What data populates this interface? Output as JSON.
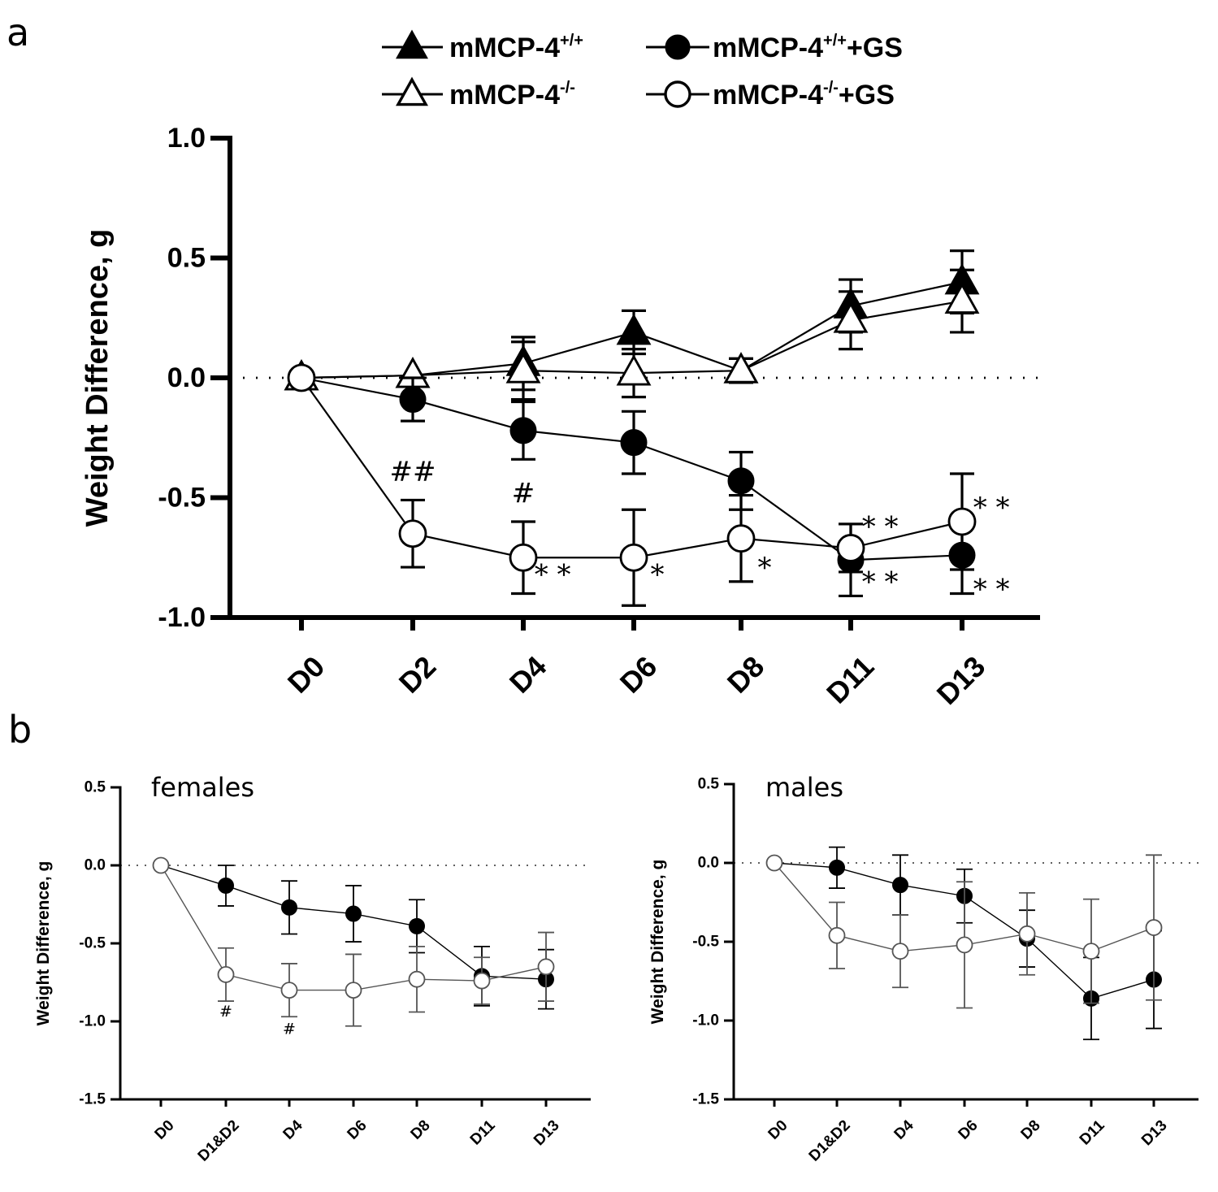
{
  "panel_a": {
    "label": "a",
    "legend": [
      {
        "key": "wt",
        "base": "mMCP-4",
        "sup": "+/+",
        "suffix": ""
      },
      {
        "key": "ko",
        "base": "mMCP-4",
        "sup": "-/-",
        "suffix": ""
      },
      {
        "key": "wt_gs",
        "base": "mMCP-4",
        "sup": "+/+",
        "suffix": "+GS"
      },
      {
        "key": "ko_gs",
        "base": "mMCP-4",
        "sup": "-/-",
        "suffix": "+GS"
      }
    ]
  },
  "panel_b": {
    "label": "b"
  },
  "chart_data": [
    {
      "id": "a",
      "type": "line",
      "title": "",
      "xlabel": "",
      "ylabel": "Weight Difference, g",
      "ylim": [
        -1.0,
        1.0
      ],
      "yticks": [
        1.0,
        0.5,
        0.0,
        -0.5,
        -1.0
      ],
      "ytick_labels": [
        "1.0",
        "0.5",
        "0.0",
        "-0.5",
        "-1.0"
      ],
      "categories": [
        "D0",
        "D2",
        "D4",
        "D6",
        "D8",
        "D11",
        "D13"
      ],
      "reference_line": 0,
      "legend_position": "top",
      "series": [
        {
          "key": "wt",
          "name": "mMCP-4+/+",
          "marker": "triangle-filled",
          "values": [
            0.0,
            0.01,
            0.06,
            0.19,
            0.03,
            0.3,
            0.4
          ],
          "err": [
            0.0,
            0.0,
            0.11,
            0.09,
            0.05,
            0.11,
            0.13
          ]
        },
        {
          "key": "ko",
          "name": "mMCP-4-/-",
          "marker": "triangle-open",
          "values": [
            0.0,
            0.01,
            0.03,
            0.02,
            0.03,
            0.24,
            0.32
          ],
          "err": [
            0.0,
            0.0,
            0.12,
            0.1,
            0.05,
            0.12,
            0.13
          ]
        },
        {
          "key": "wt_gs",
          "name": "mMCP-4+/++GS",
          "marker": "circle-filled",
          "values": [
            0.0,
            -0.09,
            -0.22,
            -0.27,
            -0.43,
            -0.76,
            -0.74
          ],
          "err": [
            0.0,
            0.09,
            0.12,
            0.13,
            0.12,
            0.15,
            0.16
          ]
        },
        {
          "key": "ko_gs",
          "name": "mMCP-4-/-+GS",
          "marker": "circle-open",
          "values": [
            0.0,
            -0.65,
            -0.75,
            -0.75,
            -0.67,
            -0.71,
            -0.6
          ],
          "err": [
            0.0,
            0.14,
            0.15,
            0.2,
            0.18,
            0.1,
            0.2
          ]
        }
      ],
      "annotations": [
        {
          "text": "##",
          "x": 1,
          "y": -0.43,
          "anchor": "middle"
        },
        {
          "text": "#",
          "x": 2,
          "y": -0.52,
          "anchor": "middle"
        },
        {
          "text": "* *",
          "x": 2.1,
          "y": -0.86,
          "anchor": "start"
        },
        {
          "text": "*",
          "x": 3.15,
          "y": -0.86,
          "anchor": "start"
        },
        {
          "text": "*",
          "x": 4.15,
          "y": -0.83,
          "anchor": "start"
        },
        {
          "text": "* *",
          "x": 5.1,
          "y": -0.66,
          "anchor": "start"
        },
        {
          "text": "* *",
          "x": 5.1,
          "y": -0.89,
          "anchor": "start"
        },
        {
          "text": "* *",
          "x": 6.1,
          "y": -0.58,
          "anchor": "start"
        },
        {
          "text": "* *",
          "x": 6.1,
          "y": -0.92,
          "anchor": "start"
        }
      ]
    },
    {
      "id": "b-females",
      "type": "line",
      "title": "females",
      "xlabel": "",
      "ylabel": "Weight Difference, g",
      "ylim": [
        -1.5,
        0.5
      ],
      "yticks": [
        0.5,
        0.0,
        -0.5,
        -1.0,
        -1.5
      ],
      "ytick_labels": [
        "0.5",
        "0.0",
        "-0.5",
        "-1.0",
        "-1.5"
      ],
      "categories": [
        "D0",
        "D1&D2",
        "D4",
        "D6",
        "D8",
        "D11",
        "D13"
      ],
      "reference_line": 0,
      "series": [
        {
          "key": "wt_gs",
          "name": "mMCP-4+/++GS",
          "marker": "circle-filled",
          "values": [
            0.0,
            -0.13,
            -0.27,
            -0.31,
            -0.39,
            -0.71,
            -0.73
          ],
          "err": [
            0.0,
            0.13,
            0.17,
            0.18,
            0.17,
            0.19,
            0.19
          ]
        },
        {
          "key": "ko_gs",
          "name": "mMCP-4-/-+GS",
          "marker": "circle-open",
          "values": [
            0.0,
            -0.7,
            -0.8,
            -0.8,
            -0.73,
            -0.74,
            -0.65
          ],
          "err": [
            0.0,
            0.17,
            0.17,
            0.23,
            0.21,
            0.15,
            0.22
          ]
        }
      ],
      "annotations": [
        {
          "text": "#",
          "x": 1,
          "y": -0.97,
          "anchor": "middle"
        },
        {
          "text": "#",
          "x": 2,
          "y": -1.08,
          "anchor": "middle"
        }
      ]
    },
    {
      "id": "b-males",
      "type": "line",
      "title": "males",
      "xlabel": "",
      "ylabel": "Weight Difference, g",
      "ylim": [
        -1.5,
        0.5
      ],
      "yticks": [
        0.5,
        0.0,
        -0.5,
        -1.0,
        -1.5
      ],
      "ytick_labels": [
        "0.5",
        "0.0",
        "-0.5",
        "-1.0",
        "-1.5"
      ],
      "categories": [
        "D0",
        "D1&D2",
        "D4",
        "D6",
        "D8",
        "D11",
        "D13"
      ],
      "reference_line": 0,
      "series": [
        {
          "key": "wt_gs",
          "name": "mMCP-4+/++GS",
          "marker": "circle-filled",
          "values": [
            0.0,
            -0.03,
            -0.14,
            -0.21,
            -0.48,
            -0.86,
            -0.74
          ],
          "err": [
            0.0,
            0.13,
            0.19,
            0.17,
            0.18,
            0.26,
            0.31
          ]
        },
        {
          "key": "ko_gs",
          "name": "mMCP-4-/-+GS",
          "marker": "circle-open",
          "values": [
            0.0,
            -0.46,
            -0.56,
            -0.52,
            -0.45,
            -0.56,
            -0.41
          ],
          "err": [
            0.0,
            0.21,
            0.23,
            0.4,
            0.26,
            0.33,
            0.46
          ]
        }
      ],
      "annotations": []
    }
  ]
}
